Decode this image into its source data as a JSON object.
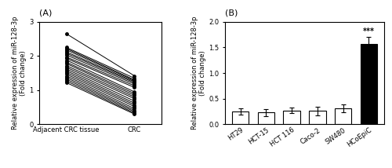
{
  "chart_data": [
    {
      "type": "line",
      "title": "(A)",
      "ylabel": "Relative expression of miR-128-3p\n(Fold change)",
      "categories": [
        "Adjacent CRC tissue",
        "CRC"
      ],
      "color": "#000000",
      "marker": "o",
      "ylim": [
        0,
        3
      ],
      "yticks": [
        0,
        1,
        2,
        3
      ],
      "series": [
        {
          "values": [
            2.65,
            1.42
          ]
        },
        {
          "values": [
            2.25,
            1.35
          ]
        },
        {
          "values": [
            2.22,
            1.3
          ]
        },
        {
          "values": [
            2.18,
            1.28
          ]
        },
        {
          "values": [
            2.12,
            1.25
          ]
        },
        {
          "values": [
            2.08,
            1.22
          ]
        },
        {
          "values": [
            2.03,
            1.18
          ]
        },
        {
          "values": [
            1.97,
            1.13
          ]
        },
        {
          "values": [
            1.93,
            1.08
          ]
        },
        {
          "values": [
            1.88,
            0.95
          ]
        },
        {
          "values": [
            1.82,
            0.9
          ]
        },
        {
          "values": [
            1.78,
            0.85
          ]
        },
        {
          "values": [
            1.72,
            0.8
          ]
        },
        {
          "values": [
            1.67,
            0.75
          ]
        },
        {
          "values": [
            1.62,
            0.68
          ]
        },
        {
          "values": [
            1.57,
            0.62
          ]
        },
        {
          "values": [
            1.52,
            0.57
          ]
        },
        {
          "values": [
            1.47,
            0.52
          ]
        },
        {
          "values": [
            1.42,
            0.46
          ]
        },
        {
          "values": [
            1.37,
            0.41
          ]
        },
        {
          "values": [
            1.32,
            0.37
          ]
        },
        {
          "values": [
            1.27,
            0.33
          ]
        },
        {
          "values": [
            1.22,
            0.3
          ]
        }
      ]
    },
    {
      "type": "bar",
      "title": "(B)",
      "ylabel": "Relative expression of miR-128-3p\n(Fold change)",
      "categories": [
        "HT29",
        "HCT-15",
        "HCT 116",
        "Caco-2",
        "SW480",
        "HCoEpiC"
      ],
      "values": [
        0.25,
        0.23,
        0.27,
        0.26,
        0.31,
        1.57
      ],
      "errors": [
        0.06,
        0.07,
        0.05,
        0.09,
        0.08,
        0.13
      ],
      "colors": [
        "#ffffff",
        "#ffffff",
        "#ffffff",
        "#ffffff",
        "#ffffff",
        "#000000"
      ],
      "ylim": [
        0,
        2.0
      ],
      "yticks": [
        0.0,
        0.5,
        1.0,
        1.5,
        2.0
      ],
      "annotations": [
        {
          "text": "***",
          "category": "HCoEpiC"
        }
      ]
    }
  ]
}
